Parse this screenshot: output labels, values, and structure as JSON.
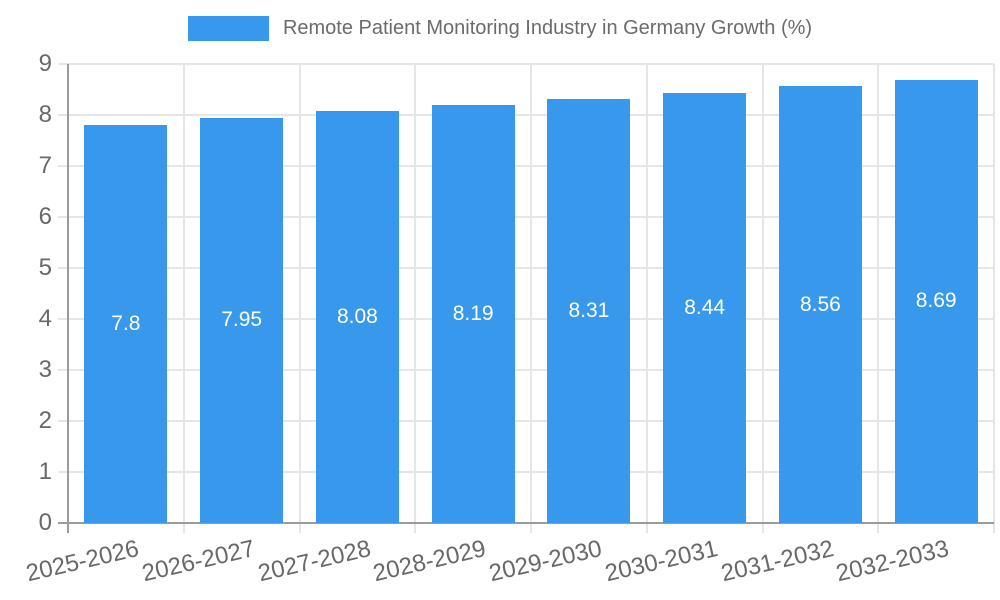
{
  "chart_data": {
    "type": "bar",
    "title": "Remote Patient Monitoring Industry in Germany Growth (%)",
    "categories": [
      "2025-2026",
      "2026-2027",
      "2027-2028",
      "2028-2029",
      "2029-2030",
      "2030-2031",
      "2031-2032",
      "2032-2033"
    ],
    "values": [
      7.8,
      7.95,
      8.08,
      8.19,
      8.31,
      8.44,
      8.56,
      8.69
    ],
    "bar_value_labels": [
      "7.8",
      "7.95",
      "8.08",
      "8.19",
      "8.31",
      "8.44",
      "8.56",
      "8.69"
    ],
    "y_tick_labels": [
      "0",
      "1",
      "2",
      "3",
      "4",
      "5",
      "6",
      "7",
      "8",
      "9"
    ],
    "ylim": [
      0,
      9
    ],
    "xlabel": "",
    "ylabel": "",
    "grid": true,
    "legend_position": "top",
    "colors": {
      "bar": "#3899EC",
      "bar_label_text": "#ffffff",
      "tick_label_text": "#686868",
      "legend_text": "#6b6b6b",
      "gridline": "#e6e6e6",
      "zero_line": "#9b9b9b",
      "background": "#ffffff"
    }
  }
}
